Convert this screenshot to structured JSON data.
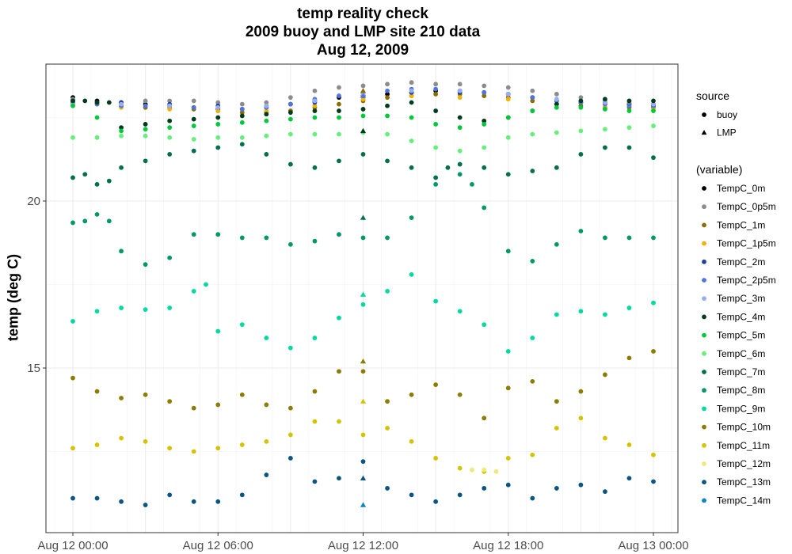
{
  "chart_data": {
    "type": "scatter",
    "title": [
      "temp reality check",
      "2009 buoy and LMP site 210 data",
      "Aug 12, 2009"
    ],
    "xlabel": "",
    "ylabel": "temp (deg C)",
    "x_ticks": [
      "Aug 12 00:00",
      "Aug 12 06:00",
      "Aug 12 12:00",
      "Aug 12 18:00",
      "Aug 13 00:00"
    ],
    "x_range_hours": [
      -1.1,
      25.05
    ],
    "y_ticks": [
      15,
      20
    ],
    "ylim": [
      10.4,
      24.1
    ],
    "grid": true,
    "legend_position": "right",
    "shape_legend": {
      "title": "source",
      "items": [
        {
          "label": "buoy",
          "shape": "circle"
        },
        {
          "label": "LMP",
          "shape": "triangle"
        }
      ]
    },
    "color_legend_title": "(variable)",
    "series": [
      {
        "name": "TempC_0m",
        "color": "#000000",
        "x": [
          0,
          1,
          2,
          3,
          4,
          5,
          6,
          7,
          8,
          9,
          10,
          11,
          12,
          13,
          14,
          15,
          16,
          17,
          18,
          19,
          20,
          21,
          22,
          23,
          24
        ],
        "values": [
          23.1,
          23.0,
          22.95,
          22.9,
          22.85,
          22.8,
          22.75,
          22.75,
          22.8,
          22.9,
          23.0,
          23.1,
          23.15,
          23.2,
          23.25,
          23.3,
          23.3,
          23.25,
          23.2,
          23.1,
          23.0,
          22.95,
          22.95,
          22.9,
          22.9
        ]
      },
      {
        "name": "TempC_0p5m",
        "color": "#8c8c8c",
        "x": [
          0,
          1,
          2,
          3,
          4,
          5,
          6,
          7,
          8,
          9,
          10,
          11,
          12,
          13,
          14,
          15,
          16,
          17,
          18,
          19,
          20,
          21,
          22,
          23,
          24
        ],
        "values": [
          23.05,
          22.95,
          22.95,
          23.0,
          23.0,
          23.0,
          22.95,
          22.9,
          22.95,
          23.1,
          23.3,
          23.4,
          23.45,
          23.5,
          23.55,
          23.5,
          23.5,
          23.45,
          23.4,
          23.3,
          23.2,
          23.1,
          23.0,
          22.95,
          22.9
        ]
      },
      {
        "name": "TempC_1m",
        "color": "#8b6d00",
        "x": [
          0,
          1,
          2,
          3,
          4,
          5,
          6,
          7,
          8,
          9,
          10,
          11,
          12,
          13,
          14,
          15,
          16,
          17,
          18,
          19,
          20,
          21,
          22,
          23,
          24
        ],
        "values": [
          22.95,
          22.9,
          22.85,
          22.8,
          22.8,
          22.75,
          22.7,
          22.65,
          22.65,
          22.7,
          22.8,
          22.9,
          23.0,
          23.1,
          23.15,
          23.2,
          23.2,
          23.15,
          23.1,
          23.0,
          22.9,
          22.85,
          22.8,
          22.8,
          22.8
        ]
      },
      {
        "name": "TempC_1p5m",
        "color": "#f0b400",
        "x": [
          0,
          2,
          4,
          6,
          8,
          10,
          12,
          14,
          16,
          18,
          20,
          22,
          24
        ],
        "values": [
          22.9,
          22.8,
          22.75,
          22.7,
          22.7,
          22.85,
          23.05,
          23.15,
          23.1,
          23.05,
          22.9,
          22.8,
          22.75
        ]
      },
      {
        "name": "TempC_2m",
        "color": "#1f3fa8",
        "x": [
          0,
          2,
          4,
          6,
          8,
          10,
          12,
          14,
          16,
          18,
          20,
          22,
          24
        ],
        "values": [
          23.0,
          22.95,
          22.9,
          22.85,
          22.85,
          22.95,
          23.15,
          23.25,
          23.25,
          23.2,
          23.0,
          22.9,
          22.85
        ]
      },
      {
        "name": "TempC_2p5m",
        "color": "#4f74e0",
        "x": [
          0,
          1,
          2,
          3,
          4,
          5,
          6,
          7,
          8,
          9,
          10,
          11,
          12,
          13,
          14,
          15,
          16,
          17,
          18,
          19,
          20,
          21,
          22,
          23,
          24
        ],
        "values": [
          22.95,
          22.9,
          22.85,
          22.85,
          22.85,
          22.8,
          22.8,
          22.75,
          22.8,
          22.9,
          23.05,
          23.15,
          23.25,
          23.3,
          23.35,
          23.35,
          23.3,
          23.25,
          23.2,
          23.1,
          23.0,
          22.95,
          22.9,
          22.85,
          22.85
        ]
      },
      {
        "name": "TempC_3m",
        "color": "#98aef0",
        "x": [
          0,
          2,
          4,
          6,
          8,
          10,
          12,
          14,
          16,
          18,
          20,
          22,
          24
        ],
        "values": [
          22.9,
          22.9,
          22.85,
          22.8,
          22.85,
          23.0,
          23.2,
          23.3,
          23.3,
          23.2,
          23.05,
          22.95,
          22.9
        ]
      },
      {
        "name": "TempC_4m",
        "color": "#003b1c",
        "x": [
          0,
          0.5,
          1,
          1.5,
          2,
          3,
          4,
          5,
          6,
          7,
          8,
          9,
          10,
          11,
          12,
          13,
          14,
          15,
          16,
          17,
          18,
          19,
          20,
          21,
          22,
          23,
          24
        ],
        "values": [
          23.0,
          23.0,
          22.95,
          22.95,
          22.2,
          22.3,
          22.4,
          22.45,
          22.5,
          22.55,
          22.6,
          22.65,
          22.7,
          22.7,
          22.75,
          22.85,
          22.95,
          22.7,
          22.5,
          22.4,
          22.5,
          22.7,
          22.9,
          23.0,
          23.05,
          23.0,
          23.0
        ]
      },
      {
        "name": "TempC_5m",
        "color": "#00c83c",
        "x": [
          0,
          1,
          2,
          3,
          4,
          5,
          6,
          7,
          8,
          9,
          10,
          11,
          12,
          13,
          14,
          15,
          16,
          17,
          18,
          19,
          20,
          21,
          22,
          23,
          24
        ],
        "values": [
          22.85,
          22.5,
          22.1,
          22.15,
          22.2,
          22.25,
          22.3,
          22.35,
          22.4,
          22.45,
          22.5,
          22.5,
          22.55,
          22.55,
          22.5,
          22.3,
          22.2,
          22.3,
          22.5,
          22.7,
          22.8,
          22.8,
          22.75,
          22.7,
          22.7
        ]
      },
      {
        "name": "TempC_6m",
        "color": "#64f07a",
        "x": [
          0,
          1,
          2,
          3,
          4,
          5,
          6,
          7,
          8,
          9,
          10,
          11,
          12,
          13,
          14,
          15,
          16,
          17,
          18,
          19,
          20,
          21,
          22,
          23,
          24
        ],
        "values": [
          21.9,
          21.9,
          21.95,
          21.95,
          21.9,
          21.85,
          21.9,
          21.9,
          21.95,
          22.0,
          22.0,
          22.0,
          22.05,
          22.0,
          21.8,
          21.6,
          21.5,
          21.6,
          21.9,
          22.0,
          22.05,
          22.1,
          22.15,
          22.2,
          22.25
        ]
      },
      {
        "name": "TempC_7m",
        "color": "#00704a",
        "x": [
          0,
          0.5,
          1,
          1.5,
          2,
          3,
          4,
          5,
          6,
          7,
          8,
          9,
          10,
          11,
          12,
          13,
          14,
          15,
          15.5,
          16,
          17,
          18,
          19,
          20,
          21,
          22,
          23,
          24
        ],
        "values": [
          20.7,
          20.8,
          20.5,
          20.6,
          21.0,
          21.2,
          21.4,
          21.5,
          21.6,
          21.7,
          21.4,
          21.1,
          21.0,
          21.2,
          21.4,
          21.2,
          21.0,
          20.7,
          21.0,
          21.1,
          21.0,
          20.8,
          20.9,
          21.0,
          21.4,
          21.6,
          21.6,
          21.3
        ]
      },
      {
        "name": "TempC_8m",
        "color": "#009966",
        "x": [
          0,
          0.5,
          1,
          1.5,
          2,
          3,
          4,
          5,
          6,
          7,
          8,
          9,
          10,
          11,
          12,
          13,
          14,
          15,
          16,
          16.5,
          17,
          18,
          19,
          20,
          21,
          22,
          23,
          24
        ],
        "values": [
          19.35,
          19.4,
          19.6,
          19.4,
          18.5,
          18.1,
          18.3,
          19.0,
          19.0,
          18.9,
          18.9,
          18.7,
          18.8,
          19.0,
          18.9,
          18.9,
          19.5,
          20.5,
          20.8,
          20.5,
          19.8,
          18.5,
          18.2,
          18.7,
          19.1,
          18.9,
          18.9,
          18.9
        ]
      },
      {
        "name": "TempC_9m",
        "color": "#00d9a0",
        "x": [
          0,
          1,
          2,
          3,
          4,
          5,
          5.5,
          6,
          7,
          8,
          9,
          10,
          11,
          12,
          13,
          14,
          15,
          16,
          17,
          18,
          19,
          20,
          21,
          22,
          23,
          24
        ],
        "values": [
          16.4,
          16.7,
          16.8,
          16.75,
          16.8,
          17.3,
          17.5,
          16.1,
          16.3,
          15.9,
          15.6,
          15.9,
          16.5,
          16.9,
          17.3,
          17.8,
          17.0,
          16.7,
          16.3,
          15.5,
          15.9,
          16.6,
          16.7,
          16.6,
          16.8,
          16.95
        ]
      },
      {
        "name": "TempC_10m",
        "color": "#8b7d00",
        "x": [
          0,
          1,
          2,
          3,
          4,
          5,
          6,
          7,
          8,
          9,
          10,
          11,
          12,
          13,
          14,
          15,
          16,
          17,
          18,
          19,
          20,
          21,
          22,
          23,
          24
        ],
        "values": [
          14.7,
          14.3,
          14.1,
          14.2,
          14.0,
          13.8,
          13.9,
          14.2,
          13.9,
          13.8,
          14.3,
          14.9,
          14.9,
          14.0,
          14.2,
          14.5,
          14.2,
          13.5,
          14.4,
          14.6,
          14.0,
          14.3,
          14.8,
          15.3,
          15.5
        ]
      },
      {
        "name": "TempC_11m",
        "color": "#d4c400",
        "x": [
          0,
          1,
          2,
          3,
          4,
          5,
          6,
          7,
          8,
          9,
          10,
          11,
          12,
          13,
          14,
          15,
          16,
          17,
          18,
          19,
          20,
          21,
          22,
          23,
          24
        ],
        "values": [
          12.6,
          12.7,
          12.9,
          12.8,
          12.6,
          12.5,
          12.6,
          12.7,
          12.8,
          13.0,
          13.4,
          13.4,
          13.0,
          13.2,
          12.8,
          12.3,
          12.0,
          11.9,
          12.3,
          12.4,
          13.2,
          13.5,
          12.9,
          12.7,
          12.4
        ]
      },
      {
        "name": "TempC_12m",
        "color": "#f0e87a",
        "x": [
          16.5,
          17,
          17.5
        ],
        "values": [
          11.95,
          11.95,
          11.9
        ]
      },
      {
        "name": "TempC_13m",
        "color": "#0b5680",
        "x": [
          0,
          1,
          2,
          3,
          4,
          5,
          6,
          7,
          8,
          9,
          10,
          11,
          12,
          13,
          14,
          15,
          16,
          17,
          18,
          19,
          20,
          21,
          22,
          23,
          24
        ],
        "values": [
          11.1,
          11.1,
          11.0,
          10.9,
          11.2,
          11.0,
          11.0,
          11.2,
          11.8,
          12.3,
          11.6,
          11.7,
          12.2,
          11.4,
          11.2,
          11.0,
          11.2,
          11.4,
          11.5,
          11.1,
          11.4,
          11.5,
          11.3,
          11.7,
          11.6
        ]
      },
      {
        "name": "TempC_14m",
        "color": "#0a86b8",
        "x": [],
        "values": []
      }
    ],
    "lmp_points": [
      {
        "series": "TempC_2p5m",
        "x": 12,
        "value": 23.15
      },
      {
        "series": "TempC_1m",
        "x": 12,
        "value": 23.3
      },
      {
        "series": "TempC_4m",
        "x": 12,
        "value": 22.1
      },
      {
        "series": "TempC_7m",
        "x": 12,
        "value": 19.5
      },
      {
        "series": "TempC_9m",
        "x": 12,
        "value": 17.2
      },
      {
        "series": "TempC_10m",
        "x": 12,
        "value": 15.2
      },
      {
        "series": "TempC_11m",
        "x": 12,
        "value": 14.0
      },
      {
        "series": "TempC_13m",
        "x": 12,
        "value": 11.7
      },
      {
        "series": "TempC_14m",
        "x": 12,
        "value": 10.9
      }
    ]
  }
}
